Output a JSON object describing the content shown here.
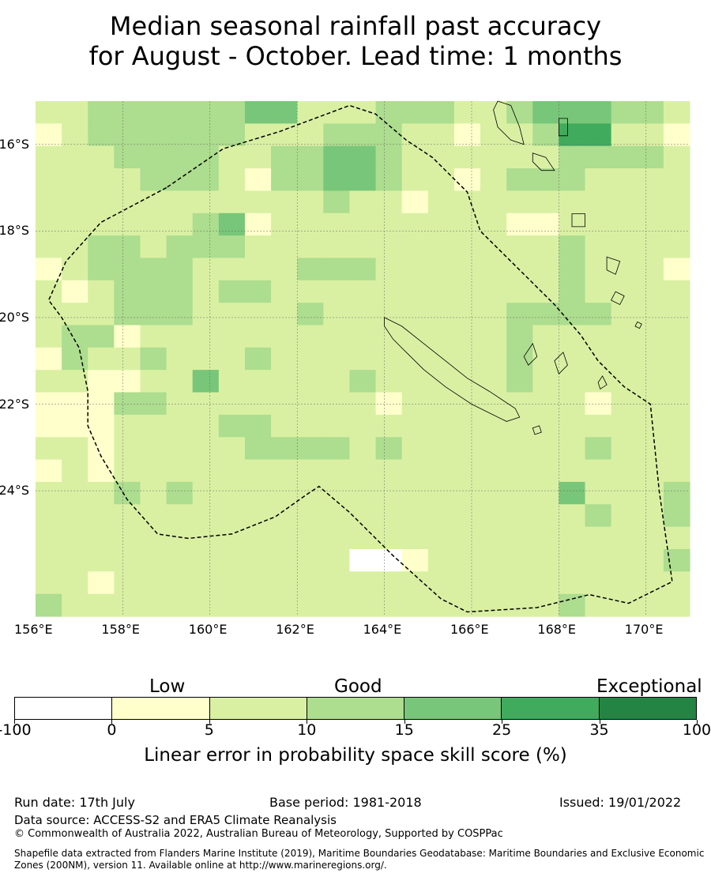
{
  "title": {
    "line1": "Median seasonal rainfall past accuracy",
    "line2": "for August - October. Lead time: 1 months"
  },
  "map": {
    "lon_range": [
      156.0,
      171.0
    ],
    "lat_range": [
      -26.9,
      -15.0
    ],
    "lon_ticks": [
      "156°E",
      "158°E",
      "160°E",
      "162°E",
      "164°E",
      "166°E",
      "168°E",
      "170°E"
    ],
    "lat_ticks": [
      "16°S",
      "18°S",
      "20°S",
      "22°S",
      "24°S"
    ],
    "gridlines": true,
    "boundary": "New Caledonia maritime boundary (EEZ), dashed",
    "grid_cells": [
      "2233333344222333223444332",
      "1233333322233322122355221",
      "2223333223344322222233332",
      "2222333213344322123332222",
      "2222222222232212222222222",
      "2222223412222222221122222",
      "2233233322222222222232222",
      "1233332222333222222232221",
      "2123332332222222222232222",
      "2223332222322222223333222",
      "2331222222222222223222222",
      "1322322232222222223222222",
      "2211224222223222223222222",
      "1113322222222122222221222",
      "1112222332222222222222222",
      "2212222233332322222223222",
      "1212222222222222222222222",
      "2223232222222222222242223",
      "2222222222222222222223223",
      "2222222222222222222222222",
      "2222222222220012222222223",
      "2212222222222222222222222",
      "3222222222222222222232222"
    ]
  },
  "colorbar": {
    "low_label": "Low",
    "good_label": "Good",
    "exceptional_label": "Exceptional",
    "colors": [
      "#ffffff",
      "#ffffcc",
      "#d9f0a3",
      "#addd8e",
      "#78c679",
      "#41ab5d",
      "#238443"
    ],
    "ticks": [
      "-100",
      "0",
      "5",
      "10",
      "15",
      "25",
      "35",
      "100"
    ],
    "title": "Linear error in probability space skill score (%)"
  },
  "footer": {
    "run_date": "Run date: 17th July",
    "base_period": "Base period: 1981-2018",
    "issued": "Issued: 19/01/2022",
    "data_source": "Data source: ACCESS-S2 and ERA5 Climate Reanalysis",
    "copyright": "© Commonwealth of Australia 2022, Australian Bureau of Meteorology, Supported by COSPPac",
    "shapefile": "Shapefile data extracted from Flanders Marine Institute (2019), Maritime Boundaries Geodatabase: Maritime Boundaries and Exclusive Economic Zones (200NM), version 11. Available online at http://www.marineregions.org/."
  }
}
